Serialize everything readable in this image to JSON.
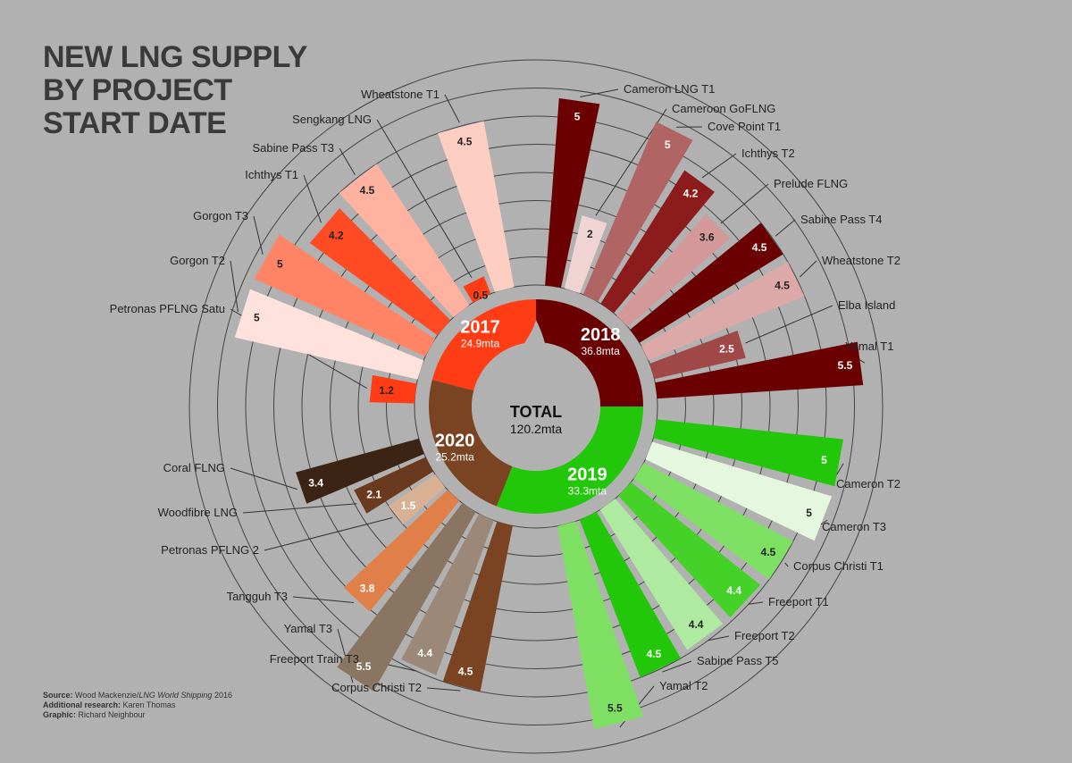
{
  "title": {
    "line1": "NEW LNG SUPPLY",
    "line2": "BY PROJECT",
    "line3": "START DATE"
  },
  "center": {
    "label": "TOTAL",
    "value": "120.2mta"
  },
  "footer": {
    "source_label": "Source:",
    "source_text": " Wood Mackenzie/",
    "source_italic": "LNG World Shipping",
    "source_year": " 2016",
    "research_label": "Additional research:",
    "research_text": " Karen Thomas",
    "graphic_label": "Graphic:",
    "graphic_text": " Richard Neighbour"
  },
  "colors": {
    "background": "#b1b1b1",
    "y2017": "#ff3c14",
    "y2018": "#6a0000",
    "y2019": "#22c70a",
    "y2020": "#7a4422"
  },
  "chart_data": {
    "type": "radial-bar",
    "unit": "mta",
    "rlim": [
      0,
      6
    ],
    "years": [
      {
        "year": "2017",
        "total": "24.9mta",
        "color": "#ff3c14"
      },
      {
        "year": "2018",
        "total": "36.8mta",
        "color": "#6a0000"
      },
      {
        "year": "2019",
        "total": "33.3mta",
        "color": "#22c70a"
      },
      {
        "year": "2020",
        "total": "25.2mta",
        "color": "#7a4422"
      }
    ],
    "bars": [
      {
        "name": "Cameron LNG T1",
        "value": 5,
        "label": "5",
        "year": "2018",
        "color": "#6a0000",
        "txt": "#ffffff",
        "side": "right"
      },
      {
        "name": "Cameroon GoFLNG",
        "value": 2,
        "label": "2",
        "year": "2018",
        "color": "#f0d4d4",
        "txt": "#222222",
        "side": "right"
      },
      {
        "name": "Cove Point T1",
        "value": 5,
        "label": "5",
        "year": "2018",
        "color": "#b06464",
        "txt": "#ffffff",
        "side": "right"
      },
      {
        "name": "Ichthys T2",
        "value": 4.2,
        "label": "4.2",
        "year": "2018",
        "color": "#8c1c1c",
        "txt": "#ffffff",
        "side": "right"
      },
      {
        "name": "Prelude FLNG",
        "value": 3.6,
        "label": "3.6",
        "year": "2018",
        "color": "#d49898",
        "txt": "#222222",
        "side": "right"
      },
      {
        "name": "Sabine Pass T4",
        "value": 4.5,
        "label": "4.5",
        "year": "2018",
        "color": "#6a0000",
        "txt": "#ffffff",
        "side": "right"
      },
      {
        "name": "Wheatstone T2",
        "value": 4.5,
        "label": "4.5",
        "year": "2018",
        "color": "#dca8a8",
        "txt": "#222222",
        "side": "right"
      },
      {
        "name": "Elba Island",
        "value": 2.5,
        "label": "2.5",
        "year": "2018",
        "color": "#a04848",
        "txt": "#ffffff",
        "side": "right"
      },
      {
        "name": "Yamal T1",
        "value": 5.5,
        "label": "5.5",
        "year": "2018",
        "color": "#6a0000",
        "txt": "#ffffff",
        "side": "right"
      },
      {
        "name": "Cameron T2",
        "value": 5,
        "label": "5",
        "year": "2019",
        "color": "#22c70a",
        "txt": "#ffffff",
        "side": "right"
      },
      {
        "name": "Cameron T3",
        "value": 5,
        "label": "5",
        "year": "2019",
        "color": "#e6f7e0",
        "txt": "#222222",
        "side": "right"
      },
      {
        "name": "Corpus Christi T1",
        "value": 4.5,
        "label": "4.5",
        "year": "2019",
        "color": "#7ee062",
        "txt": "#222222",
        "side": "right"
      },
      {
        "name": "Freeport T1",
        "value": 4.4,
        "label": "4.4",
        "year": "2019",
        "color": "#44d228",
        "txt": "#ffffff",
        "side": "right"
      },
      {
        "name": "Freeport T2",
        "value": 4.4,
        "label": "4.4",
        "year": "2019",
        "color": "#aeeaa0",
        "txt": "#222222",
        "side": "right"
      },
      {
        "name": "Sabine Pass T5",
        "value": 4.5,
        "label": "4.5",
        "year": "2019",
        "color": "#22c70a",
        "txt": "#ffffff",
        "side": "right"
      },
      {
        "name": "Yamal T2",
        "value": 5.5,
        "label": "5.5",
        "year": "2019",
        "color": "#7ee062",
        "txt": "#222222",
        "side": "right"
      },
      {
        "name": "Corpus Christi T2",
        "value": 4.5,
        "label": "4.5",
        "year": "2020",
        "color": "#7a4422",
        "txt": "#ffffff",
        "side": "left"
      },
      {
        "name": "Freeport Train T3",
        "value": 4.4,
        "label": "4.4",
        "year": "2020",
        "color": "#9c8878",
        "txt": "#ffffff",
        "side": "left"
      },
      {
        "name": "Yamal T3",
        "value": 5.5,
        "label": "5.5",
        "year": "2020",
        "color": "#8a7462",
        "txt": "#ffffff",
        "side": "left"
      },
      {
        "name": "Tangguh T3",
        "value": 3.8,
        "label": "3.8",
        "year": "2020",
        "color": "#e08048",
        "txt": "#ffffff",
        "side": "left"
      },
      {
        "name": "Petronas PFLNG 2",
        "value": 1.5,
        "label": "1.5",
        "year": "2020",
        "color": "#d8b094",
        "txt": "#ffffff",
        "side": "left"
      },
      {
        "name": "Woodfibre LNG",
        "value": 2.1,
        "label": "2.1",
        "year": "2020",
        "color": "#6a3a1e",
        "txt": "#ffffff",
        "side": "left"
      },
      {
        "name": "Coral FLNG",
        "value": 3.4,
        "label": "3.4",
        "year": "2020",
        "color": "#3c2414",
        "txt": "#ffffff",
        "side": "left"
      },
      {
        "name": "Petronas PFLNG Satu",
        "value": 1.2,
        "label": "1.2",
        "year": "2017",
        "color": "#ff3c14",
        "txt": "#222222",
        "side": "left"
      },
      {
        "name": "Gorgon T2",
        "value": 5,
        "label": "5",
        "year": "2017",
        "color": "#ffe2dc",
        "txt": "#222222",
        "side": "left"
      },
      {
        "name": "Gorgon T3",
        "value": 5,
        "label": "5",
        "year": "2017",
        "color": "#ff8466",
        "txt": "#222222",
        "side": "left"
      },
      {
        "name": "Ichthys T1",
        "value": 4.2,
        "label": "4.2",
        "year": "2017",
        "color": "#ff4a24",
        "txt": "#222222",
        "side": "left"
      },
      {
        "name": "Sabine Pass T3",
        "value": 4.5,
        "label": "4.5",
        "year": "2017",
        "color": "#ffb2a0",
        "txt": "#222222",
        "side": "left"
      },
      {
        "name": "Sengkang LNG",
        "value": 0.5,
        "label": "0.5",
        "year": "2017",
        "color": "#ff3c14",
        "txt": "#222222",
        "side": "left"
      },
      {
        "name": "Wheatstone T1",
        "value": 4.5,
        "label": "4.5",
        "year": "2017",
        "color": "#ffcec2",
        "txt": "#222222",
        "side": "left"
      }
    ]
  }
}
